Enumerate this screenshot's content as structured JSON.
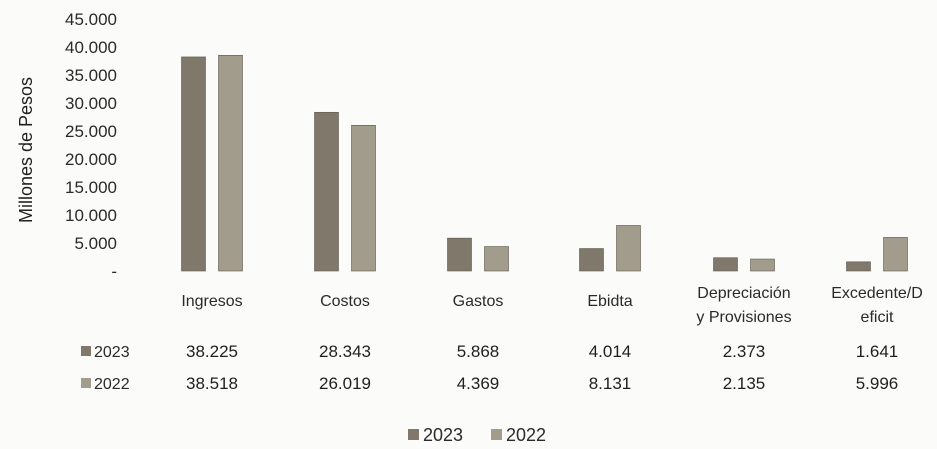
{
  "chart_data": {
    "type": "bar",
    "ylabel": "Millones de Pesos",
    "ylim": [
      0,
      45000
    ],
    "y_ticks": [
      "45.000",
      "40.000",
      "35.000",
      "30.000",
      "25.000",
      "20.000",
      "15.000",
      "10.000",
      "5.000",
      "-"
    ],
    "categories": [
      [
        "Ingresos"
      ],
      [
        "Costos"
      ],
      [
        "Gastos"
      ],
      [
        "Ebidta"
      ],
      [
        "Depreciación",
        "y Provisiones"
      ],
      [
        "Excedente/D",
        "eficit"
      ]
    ],
    "series": [
      {
        "name": "2023",
        "color": "#7f786b",
        "values": [
          38225,
          28343,
          5868,
          4014,
          2373,
          1641
        ],
        "labels": [
          "38.225",
          "28.343",
          "5.868",
          "4.014",
          "2.373",
          "1.641"
        ]
      },
      {
        "name": "2022",
        "color": "#a29c8c",
        "values": [
          38518,
          26019,
          4369,
          8131,
          2135,
          5996
        ],
        "labels": [
          "38.518",
          "26.019",
          "4.369",
          "8.131",
          "2.135",
          "5.996"
        ]
      }
    ],
    "legend": "bottom",
    "data_table": true
  }
}
